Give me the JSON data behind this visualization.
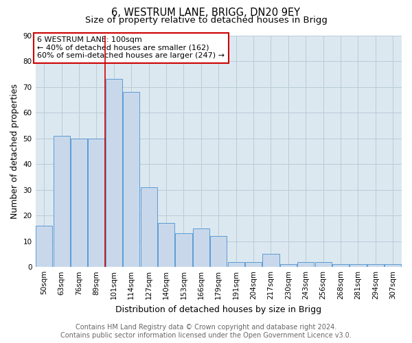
{
  "title": "6, WESTRUM LANE, BRIGG, DN20 9EY",
  "subtitle": "Size of property relative to detached houses in Brigg",
  "xlabel": "Distribution of detached houses by size in Brigg",
  "ylabel": "Number of detached properties",
  "categories": [
    "50sqm",
    "63sqm",
    "76sqm",
    "89sqm",
    "101sqm",
    "114sqm",
    "127sqm",
    "140sqm",
    "153sqm",
    "166sqm",
    "179sqm",
    "191sqm",
    "204sqm",
    "217sqm",
    "230sqm",
    "243sqm",
    "256sqm",
    "268sqm",
    "281sqm",
    "294sqm",
    "307sqm"
  ],
  "values": [
    16,
    51,
    50,
    50,
    73,
    68,
    31,
    17,
    13,
    15,
    12,
    2,
    2,
    5,
    1,
    2,
    2,
    1,
    1,
    1,
    1
  ],
  "bar_color": "#c8d8ea",
  "bar_edge_color": "#5b9bd5",
  "ref_line_index": 4,
  "ref_line_color": "#cc0000",
  "annotation_text": "6 WESTRUM LANE: 100sqm\n← 40% of detached houses are smaller (162)\n60% of semi-detached houses are larger (247) →",
  "annotation_box_color": "#ffffff",
  "annotation_box_edge": "#cc0000",
  "ylim": [
    0,
    90
  ],
  "yticks": [
    0,
    10,
    20,
    30,
    40,
    50,
    60,
    70,
    80,
    90
  ],
  "footer_line1": "Contains HM Land Registry data © Crown copyright and database right 2024.",
  "footer_line2": "Contains public sector information licensed under the Open Government Licence v3.0.",
  "bg_color": "#ffffff",
  "plot_bg_color": "#dce8f0",
  "grid_color": "#b8ccd8",
  "title_fontsize": 10.5,
  "subtitle_fontsize": 9.5,
  "axis_label_fontsize": 9,
  "tick_fontsize": 7.5,
  "footer_fontsize": 7.0,
  "annotation_fontsize": 8.0
}
